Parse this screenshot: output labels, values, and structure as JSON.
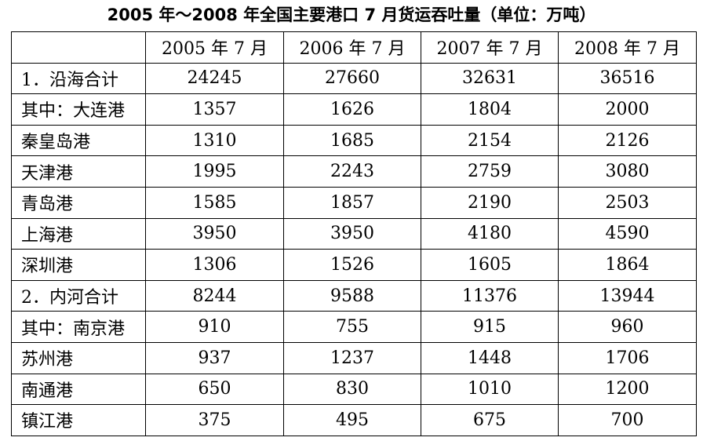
{
  "title": "2005 年～2008 年全国主要港口 7 月货运吞吐量（单位：万吨）",
  "table": {
    "header": [
      "2005 年 7 月",
      "2006 年 7 月",
      "2007 年 7 月",
      "2008 年 7 月"
    ],
    "rows": [
      [
        "1．沿海合计",
        24245,
        27660,
        32631,
        36516
      ],
      [
        "其中：大连港",
        1357,
        1626,
        1804,
        2000
      ],
      [
        "秦皇岛港",
        1310,
        1685,
        2154,
        2126
      ],
      [
        "天津港",
        1995,
        2243,
        2759,
        3080
      ],
      [
        "青岛港",
        1585,
        1857,
        2190,
        2503
      ],
      [
        "上海港",
        3950,
        3950,
        4180,
        4590
      ],
      [
        "深圳港",
        1306,
        1526,
        1605,
        1864
      ],
      [
        "2．内河合计",
        8244,
        9588,
        11376,
        13944
      ],
      [
        "其中：南京港",
        910,
        755,
        915,
        960
      ],
      [
        "苏州港",
        937,
        1237,
        1448,
        1706
      ],
      [
        "南通港",
        650,
        830,
        1010,
        1200
      ],
      [
        "镇江港",
        375,
        495,
        675,
        700
      ]
    ]
  }
}
